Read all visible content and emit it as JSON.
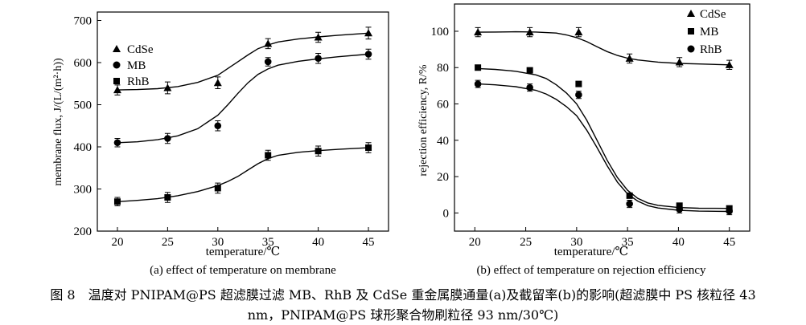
{
  "caption": {
    "line1": "图 8　温度对 PNIPAM@PS 超滤膜过滤 MB、RhB 及 CdSe 重金属膜通量(a)及截留率(b)的影响(超滤膜中 PS 核粒径 43",
    "line2": "nm，PNIPAM@PS 球形聚合物刷粒径 93 nm/30℃)"
  },
  "colors": {
    "ink": "#000000",
    "background": "#ffffff"
  },
  "chart_data": [
    {
      "type": "scatter",
      "panel": "a",
      "subtitle": "(a) effect of temperature on membrane",
      "xlabel": "temperature/℃",
      "ylabel": "membrane flux, J/(L/(m²·h))",
      "xlim": [
        18,
        47
      ],
      "ylim": [
        200,
        720
      ],
      "xticks": [
        20,
        25,
        30,
        35,
        40,
        45
      ],
      "yticks": [
        200,
        300,
        400,
        500,
        600,
        700
      ],
      "legend_position": "top-left",
      "series": [
        {
          "name": "CdSe",
          "marker": "triangle",
          "x": [
            20,
            25,
            30,
            35,
            40,
            45
          ],
          "y": [
            535,
            540,
            552,
            645,
            660,
            670
          ],
          "error": [
            12,
            14,
            14,
            12,
            12,
            14
          ],
          "fit": [
            [
              20,
              535
            ],
            [
              22,
              536
            ],
            [
              24,
              538
            ],
            [
              26,
              543
            ],
            [
              28,
              553
            ],
            [
              30,
              570
            ],
            [
              31,
              586
            ],
            [
              32,
              602
            ],
            [
              33,
              618
            ],
            [
              34,
              633
            ],
            [
              35,
              642
            ],
            [
              36,
              649
            ],
            [
              38,
              656
            ],
            [
              40,
              661
            ],
            [
              42,
              665
            ],
            [
              45,
              670
            ]
          ]
        },
        {
          "name": "MB",
          "marker": "circle",
          "x": [
            20,
            25,
            30,
            35,
            40,
            45
          ],
          "y": [
            410,
            420,
            450,
            602,
            610,
            620
          ],
          "error": [
            10,
            12,
            12,
            10,
            12,
            12
          ],
          "fit": [
            [
              20,
              410
            ],
            [
              22,
              412
            ],
            [
              24,
              417
            ],
            [
              26,
              426
            ],
            [
              28,
              443
            ],
            [
              30,
              475
            ],
            [
              31,
              500
            ],
            [
              32,
              527
            ],
            [
              33,
              552
            ],
            [
              34,
              572
            ],
            [
              35,
              585
            ],
            [
              36,
              594
            ],
            [
              38,
              603
            ],
            [
              40,
              609
            ],
            [
              42,
              614
            ],
            [
              45,
              620
            ]
          ]
        },
        {
          "name": "RhB",
          "marker": "square",
          "x": [
            20,
            25,
            30,
            35,
            40,
            45
          ],
          "y": [
            270,
            280,
            302,
            380,
            390,
            398
          ],
          "error": [
            10,
            12,
            12,
            12,
            12,
            12
          ],
          "fit": [
            [
              20,
              270
            ],
            [
              22,
              273
            ],
            [
              24,
              277
            ],
            [
              26,
              284
            ],
            [
              28,
              294
            ],
            [
              30,
              308
            ],
            [
              31,
              318
            ],
            [
              32,
              330
            ],
            [
              33,
              345
            ],
            [
              34,
              360
            ],
            [
              35,
              372
            ],
            [
              36,
              380
            ],
            [
              38,
              387
            ],
            [
              40,
              391
            ],
            [
              42,
              394
            ],
            [
              45,
              398
            ]
          ]
        }
      ]
    },
    {
      "type": "scatter",
      "panel": "b",
      "subtitle": "(b) effect of temperature on rejection efficiency",
      "xlabel": "temperature/℃",
      "ylabel": "rejection efficiency, R/%",
      "xlim": [
        18,
        47
      ],
      "ylim": [
        -10,
        115
      ],
      "xticks": [
        20,
        25,
        30,
        35,
        40,
        45
      ],
      "yticks": [
        0,
        20,
        40,
        60,
        80,
        100
      ],
      "legend_position": "top-right",
      "series": [
        {
          "name": "CdSe",
          "marker": "triangle",
          "x": [
            20.3,
            25.4,
            30.2,
            35.2,
            40.1,
            45
          ],
          "y": [
            99.5,
            99.5,
            99.5,
            85,
            83,
            81.5
          ],
          "error": [
            2.5,
            2.5,
            2.5,
            2.5,
            2.5,
            2.5
          ],
          "fit": [
            [
              20.3,
              99.5
            ],
            [
              22,
              99.6
            ],
            [
              24,
              99.7
            ],
            [
              26,
              99.6
            ],
            [
              28,
              99
            ],
            [
              29,
              98
            ],
            [
              30,
              96.5
            ],
            [
              31,
              94.3
            ],
            [
              32,
              91.5
            ],
            [
              33,
              88.8
            ],
            [
              34,
              86.7
            ],
            [
              35,
              85.2
            ],
            [
              36,
              84.2
            ],
            [
              38,
              83
            ],
            [
              40,
              82.3
            ],
            [
              42,
              82
            ],
            [
              45,
              81.5
            ]
          ]
        },
        {
          "name": "MB",
          "marker": "square",
          "x": [
            20.3,
            25.4,
            30.2,
            35.2,
            40.1,
            45
          ],
          "y": [
            80,
            78.5,
            71,
            9.5,
            4,
            2.5
          ],
          "error": [
            0,
            0,
            0,
            0,
            0,
            0
          ],
          "fit": [
            [
              20.3,
              79.5
            ],
            [
              22,
              79
            ],
            [
              24,
              78
            ],
            [
              26,
              76
            ],
            [
              27,
              74
            ],
            [
              28,
              70.5
            ],
            [
              29,
              66
            ],
            [
              30,
              60
            ],
            [
              31,
              51
            ],
            [
              32,
              40
            ],
            [
              33,
              29
            ],
            [
              34,
              19.5
            ],
            [
              35,
              12.5
            ],
            [
              36,
              8
            ],
            [
              37,
              5.5
            ],
            [
              38,
              4.2
            ],
            [
              40,
              3
            ],
            [
              42,
              2.6
            ],
            [
              45,
              2.5
            ]
          ]
        },
        {
          "name": "RhB",
          "marker": "circle",
          "x": [
            20.3,
            25.4,
            30.2,
            35.2,
            40.1,
            45
          ],
          "y": [
            71,
            69,
            65,
            5,
            2,
            1
          ],
          "error": [
            2,
            2,
            2,
            2,
            2,
            2
          ],
          "fit": [
            [
              20.3,
              71
            ],
            [
              22,
              70.5
            ],
            [
              24,
              69.5
            ],
            [
              26,
              67.5
            ],
            [
              27,
              65.5
            ],
            [
              28,
              62.5
            ],
            [
              29,
              58.5
            ],
            [
              30,
              53.5
            ],
            [
              31,
              45.5
            ],
            [
              32,
              36
            ],
            [
              33,
              26
            ],
            [
              34,
              17
            ],
            [
              35,
              10.5
            ],
            [
              36,
              6.5
            ],
            [
              37,
              4
            ],
            [
              38,
              2.7
            ],
            [
              40,
              1.5
            ],
            [
              42,
              1
            ],
            [
              45,
              0.8
            ]
          ]
        }
      ]
    }
  ]
}
